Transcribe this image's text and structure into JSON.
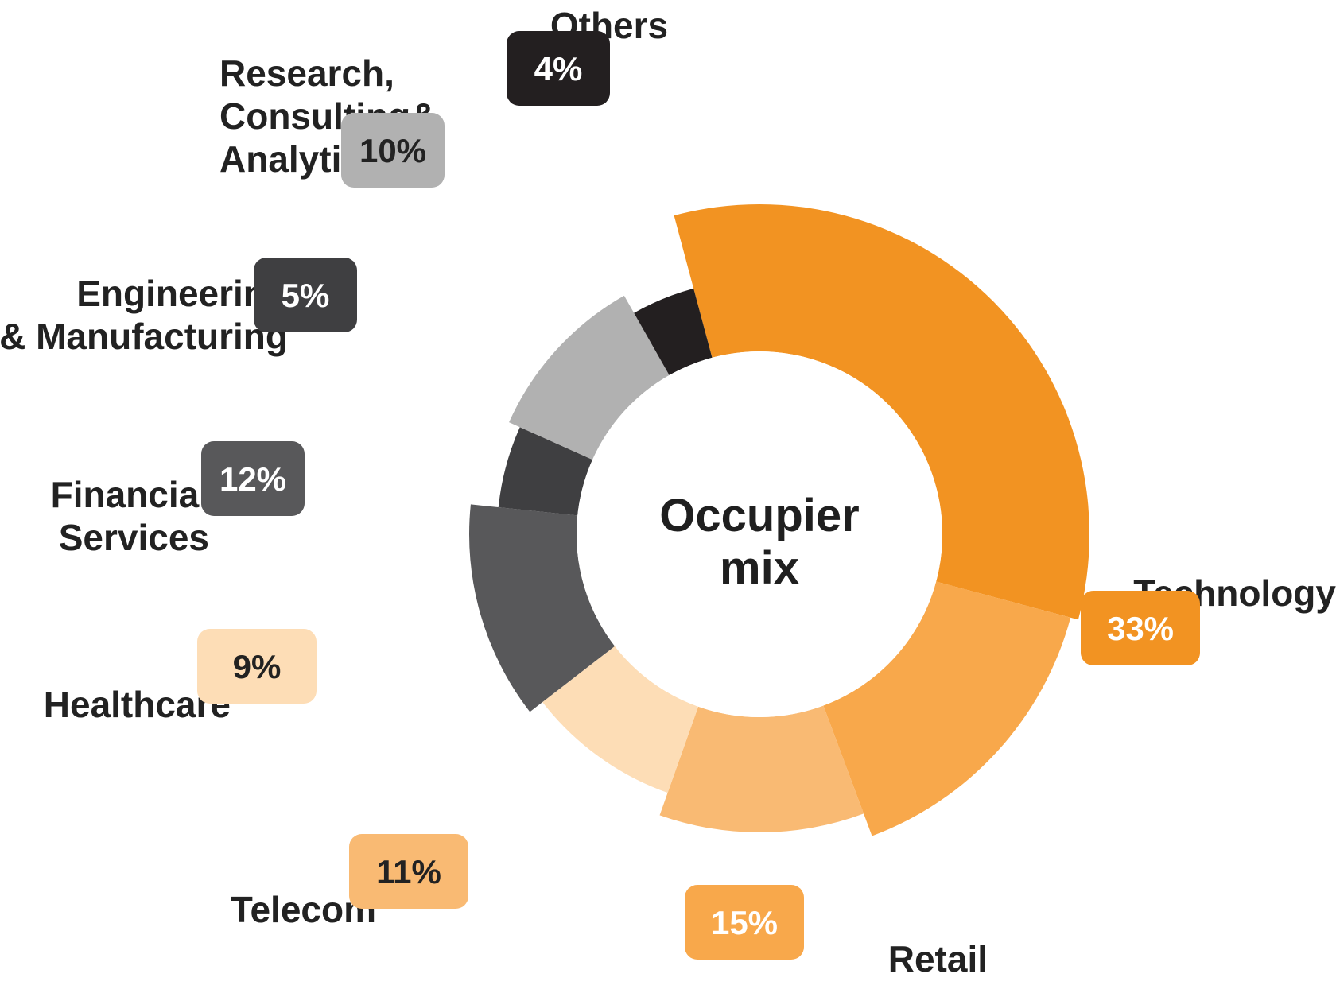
{
  "chart_data": {
    "type": "pie",
    "variant": "donut",
    "center_title": [
      "Occupier",
      "mix"
    ],
    "slices": [
      {
        "name": "Technology",
        "label_lines": [
          "Technology"
        ],
        "value": 33,
        "display": "33%",
        "color": "#F29322",
        "text_color": "#ffffff"
      },
      {
        "name": "Retail",
        "label_lines": [
          "Retail"
        ],
        "value": 15,
        "display": "15%",
        "color": "#F8A84B",
        "text_color": "#ffffff"
      },
      {
        "name": "Telecom",
        "label_lines": [
          "Telecom"
        ],
        "value": 11,
        "display": "11%",
        "color": "#F9BA73",
        "text_color": "#222222"
      },
      {
        "name": "Healthcare",
        "label_lines": [
          "Healthcare"
        ],
        "value": 9,
        "display": "9%",
        "color": "#FDDDB6",
        "text_color": "#222222"
      },
      {
        "name": "Financial Services",
        "label_lines": [
          "Financial",
          "Services"
        ],
        "value": 12,
        "display": "12%",
        "color": "#58585A",
        "text_color": "#ffffff"
      },
      {
        "name": "Engineering & Manufacturing",
        "label_lines": [
          "Engineering",
          "& Manufacturing"
        ],
        "value": 5,
        "display": "5%",
        "color": "#3F3F41",
        "text_color": "#ffffff"
      },
      {
        "name": "Research, Consulting& Analytics",
        "label_lines": [
          "Research,",
          "Consulting&",
          "Analytics"
        ],
        "value": 10,
        "display": "10%",
        "color": "#B1B1B1",
        "text_color": "#222222"
      },
      {
        "name": "Others",
        "label_lines": [
          "Others"
        ],
        "value": 4,
        "display": "4%",
        "color": "#231F20",
        "text_color": "#ffffff"
      }
    ]
  }
}
